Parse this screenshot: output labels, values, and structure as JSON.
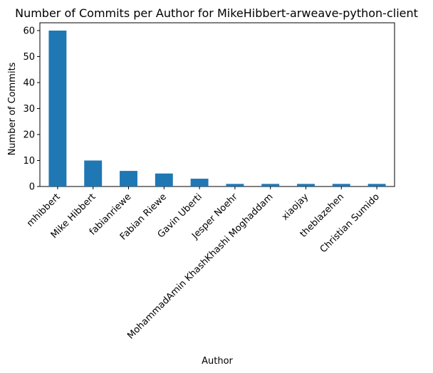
{
  "chart_data": {
    "type": "bar",
    "title": "Number of Commits per Author for MikeHibbert-arweave-python-client",
    "xlabel": "Author",
    "ylabel": "Number of Commits",
    "categories": [
      "mhibbert",
      "Mike Hibbert",
      "fabianriewe",
      "Fabian Riewe",
      "Gavin Uberti",
      "Jesper Noehr",
      "MohammadAmin KhashKhashi Moghaddam",
      "xiaojay",
      "theblazehen",
      "Christian Sumido"
    ],
    "values": [
      60,
      10,
      6,
      5,
      3,
      1,
      1,
      1,
      1,
      1
    ],
    "ylim": [
      0,
      63
    ],
    "yticks": [
      0,
      10,
      20,
      30,
      40,
      50,
      60
    ],
    "grid": false,
    "legend": "none",
    "bar_color": "#1f77b4"
  }
}
